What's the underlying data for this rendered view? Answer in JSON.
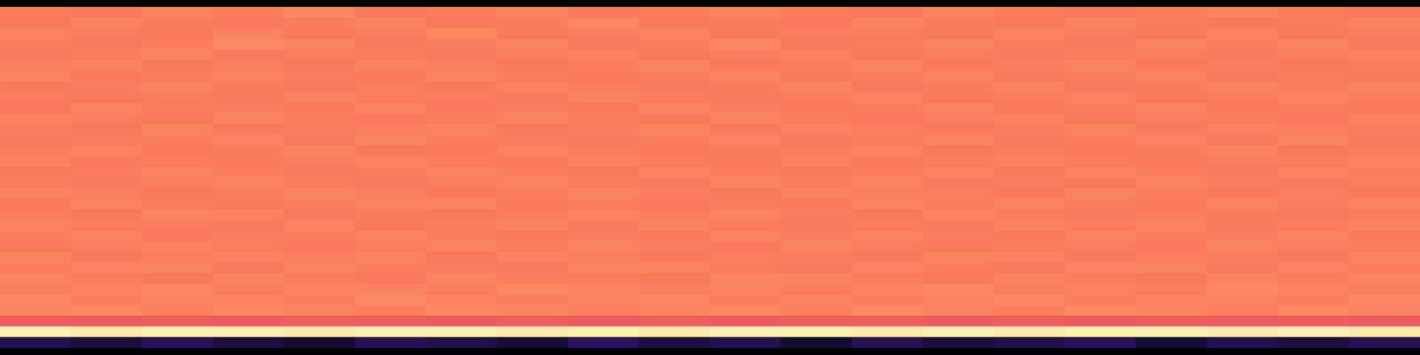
{
  "chart_data": {
    "type": "heatmap",
    "tick_labels": false,
    "color": "magma",
    "zlim": [
      0,
      100
    ],
    "cells": [
      [
        73,
        72,
        74,
        73,
        75,
        72,
        73,
        74,
        72,
        73,
        74,
        73,
        72,
        74,
        73,
        72,
        73,
        74,
        73,
        72
      ],
      [
        72,
        74,
        73,
        72,
        73,
        74,
        72,
        73,
        75,
        72,
        73,
        72,
        74,
        73,
        72,
        74,
        73,
        72,
        73,
        74
      ],
      [
        74,
        73,
        72,
        74,
        72,
        73,
        75,
        72,
        73,
        74,
        72,
        73,
        73,
        72,
        74,
        73,
        72,
        74,
        72,
        73
      ],
      [
        73,
        72,
        73,
        75,
        74,
        72,
        73,
        74,
        72,
        73,
        75,
        72,
        73,
        74,
        73,
        72,
        74,
        73,
        74,
        72
      ],
      [
        72,
        73,
        74,
        72,
        73,
        73,
        72,
        73,
        74,
        72,
        73,
        74,
        72,
        73,
        72,
        73,
        73,
        72,
        73,
        74
      ],
      [
        73,
        74,
        72,
        73,
        72,
        74,
        73,
        72,
        73,
        74,
        72,
        73,
        74,
        72,
        73,
        74,
        72,
        73,
        72,
        73
      ],
      [
        74,
        72,
        73,
        74,
        73,
        72,
        74,
        73,
        72,
        73,
        74,
        72,
        73,
        74,
        72,
        73,
        74,
        72,
        73,
        72
      ],
      [
        72,
        73,
        74,
        73,
        72,
        73,
        72,
        74,
        73,
        72,
        73,
        74,
        72,
        73,
        74,
        72,
        73,
        74,
        73,
        74
      ],
      [
        73,
        72,
        73,
        72,
        74,
        73,
        73,
        72,
        74,
        73,
        72,
        73,
        74,
        72,
        73,
        74,
        72,
        73,
        74,
        73
      ],
      [
        72,
        74,
        73,
        73,
        72,
        74,
        72,
        73,
        72,
        74,
        73,
        72,
        73,
        74,
        72,
        73,
        74,
        72,
        73,
        72
      ],
      [
        74,
        73,
        72,
        74,
        73,
        72,
        73,
        74,
        73,
        72,
        74,
        73,
        72,
        73,
        74,
        72,
        73,
        73,
        72,
        74
      ],
      [
        73,
        72,
        74,
        72,
        73,
        73,
        74,
        72,
        73,
        74,
        72,
        74,
        73,
        72,
        73,
        74,
        72,
        74,
        73,
        73
      ],
      [
        72,
        73,
        73,
        74,
        72,
        74,
        73,
        73,
        72,
        73,
        74,
        72,
        73,
        74,
        72,
        73,
        74,
        72,
        74,
        72
      ],
      [
        73,
        74,
        72,
        73,
        74,
        72,
        72,
        74,
        73,
        72,
        73,
        73,
        74,
        72,
        73,
        72,
        73,
        74,
        72,
        73
      ],
      [
        74,
        72,
        73,
        72,
        73,
        74,
        73,
        72,
        74,
        73,
        72,
        74,
        72,
        73,
        74,
        73,
        72,
        73,
        73,
        74
      ],
      [
        72,
        73,
        74,
        73,
        72,
        73,
        74,
        73,
        72,
        74,
        73,
        72,
        73,
        74,
        72,
        74,
        73,
        72,
        74,
        73
      ],
      [
        73,
        72,
        73,
        74,
        73,
        72,
        73,
        74,
        73,
        72,
        74,
        73,
        74,
        72,
        73,
        72,
        74,
        73,
        72,
        73
      ],
      [
        74,
        73,
        72,
        73,
        74,
        73,
        72,
        73,
        74,
        73,
        72,
        74,
        73,
        73,
        72,
        74,
        73,
        72,
        73,
        72
      ],
      [
        72,
        74,
        73,
        72,
        73,
        74,
        74,
        72,
        73,
        72,
        73,
        72,
        74,
        73,
        74,
        73,
        72,
        74,
        73,
        74
      ],
      [
        73,
        72,
        74,
        74,
        72,
        73,
        72,
        73,
        74,
        73,
        74,
        73,
        72,
        74,
        73,
        72,
        73,
        73,
        72,
        73
      ],
      [
        74,
        73,
        73,
        72,
        74,
        72,
        73,
        74,
        72,
        74,
        73,
        72,
        73,
        72,
        74,
        73,
        74,
        72,
        73,
        74
      ],
      [
        73,
        74,
        72,
        73,
        73,
        74,
        73,
        72,
        73,
        72,
        74,
        73,
        74,
        73,
        72,
        74,
        73,
        73,
        74,
        72
      ],
      [
        72,
        73,
        74,
        73,
        72,
        73,
        74,
        73,
        74,
        73,
        72,
        74,
        73,
        72,
        73,
        73,
        72,
        74,
        73,
        73
      ],
      [
        74,
        72,
        73,
        74,
        73,
        74,
        72,
        74,
        73,
        72,
        73,
        73,
        72,
        74,
        74,
        72,
        73,
        73,
        72,
        74
      ],
      [
        73,
        74,
        74,
        72,
        74,
        73,
        73,
        72,
        74,
        74,
        73,
        72,
        74,
        73,
        72,
        74,
        74,
        72,
        74,
        73
      ],
      [
        74,
        73,
        72,
        74,
        73,
        72,
        74,
        73,
        73,
        72,
        74,
        74,
        73,
        72,
        74,
        73,
        72,
        74,
        73,
        74
      ],
      [
        73,
        74,
        75,
        73,
        74,
        74,
        73,
        75,
        74,
        73,
        74,
        73,
        74,
        75,
        73,
        74,
        73,
        75,
        74,
        73
      ],
      [
        75,
        73,
        74,
        74,
        73,
        75,
        74,
        73,
        74,
        75,
        73,
        74,
        73,
        74,
        75,
        73,
        74,
        74,
        73,
        75
      ],
      [
        74,
        75,
        73,
        75,
        74,
        73,
        75,
        74,
        73,
        74,
        75,
        73,
        75,
        74,
        73,
        75,
        74,
        73,
        75,
        74
      ],
      [
        66,
        65,
        66,
        65,
        66,
        66,
        65,
        66,
        65,
        66,
        65,
        66,
        66,
        65,
        66,
        65,
        66,
        65,
        66,
        65
      ],
      [
        97,
        96,
        97,
        97,
        96,
        97,
        97,
        96,
        97,
        96,
        97,
        97,
        96,
        97,
        96,
        97,
        97,
        96,
        97,
        96
      ],
      [
        14,
        11,
        16,
        12,
        9,
        15,
        13,
        10,
        17,
        12,
        14,
        9,
        15,
        11,
        13,
        16,
        10,
        14,
        12,
        15
      ]
    ]
  }
}
